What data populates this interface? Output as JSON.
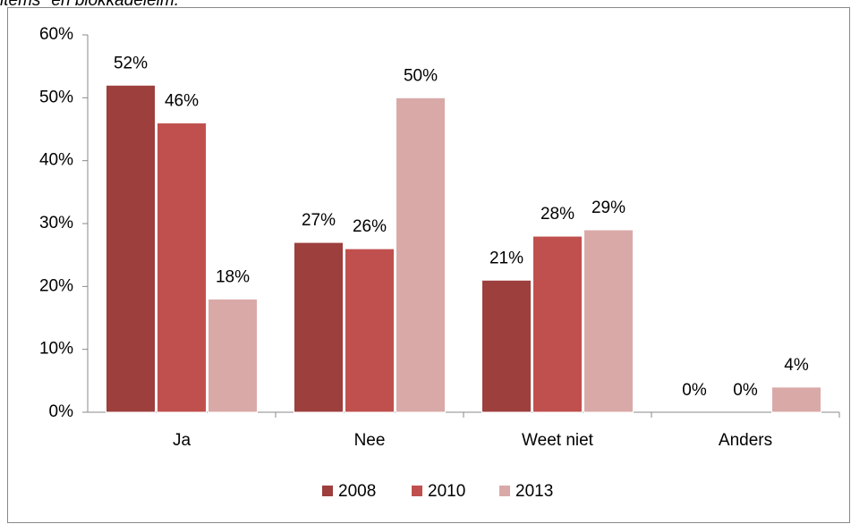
{
  "chart_data": {
    "type": "bar",
    "title": "items\" en blokkadeleim.",
    "categories": [
      "Ja",
      "Nee",
      "Weet niet",
      "Anders"
    ],
    "series": [
      {
        "name": "2008",
        "color": "#9c3f3d",
        "values": [
          52,
          27,
          21,
          0
        ],
        "value_labels": [
          "52%",
          "27%",
          "21%",
          "0%"
        ]
      },
      {
        "name": "2010",
        "color": "#c0504d",
        "values": [
          46,
          26,
          28,
          0
        ],
        "value_labels": [
          "46%",
          "26%",
          "28%",
          "0%"
        ]
      },
      {
        "name": "2013",
        "color": "#d9a9a8",
        "values": [
          18,
          50,
          29,
          4
        ],
        "value_labels": [
          "18%",
          "50%",
          "29%",
          "4%"
        ]
      }
    ],
    "ylim": [
      0,
      60
    ],
    "yticks": [
      {
        "value": 0,
        "label": "0%"
      },
      {
        "value": 10,
        "label": "10%"
      },
      {
        "value": 20,
        "label": "20%"
      },
      {
        "value": 30,
        "label": "30%"
      },
      {
        "value": 40,
        "label": "40%"
      },
      {
        "value": 50,
        "label": "50%"
      },
      {
        "value": 60,
        "label": "60%"
      }
    ],
    "legend": "bottom"
  }
}
